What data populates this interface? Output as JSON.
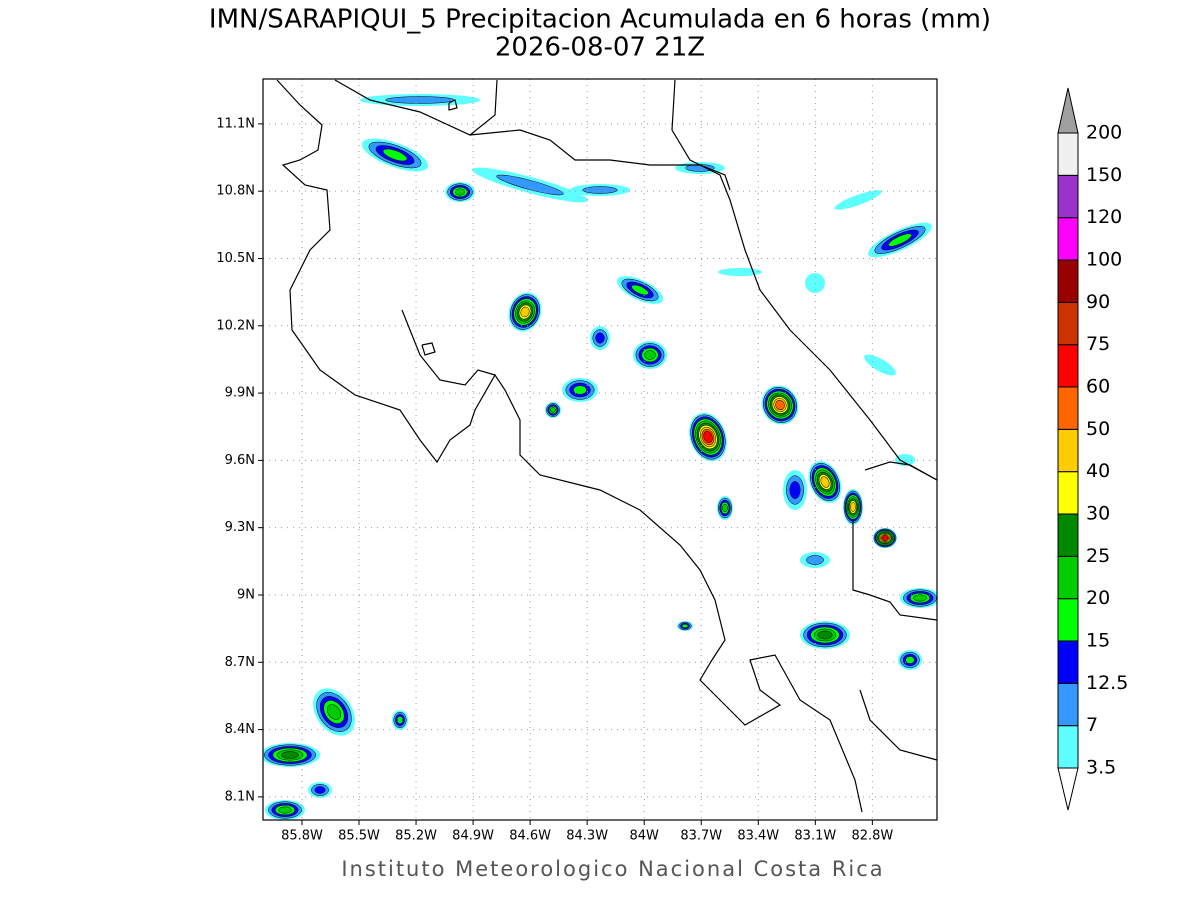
{
  "title": "IMN/SARAPIQUI_5 Precipitacion Acumulada en 6 horas (mm)",
  "subtitle": "2026-08-07 21Z",
  "map": {
    "xlim": [
      -86.005,
      -82.46
    ],
    "ylim": [
      7.997,
      11.3
    ],
    "xticks": [
      {
        "value": -85.8,
        "label": "85.8W"
      },
      {
        "value": -85.5,
        "label": "85.5W"
      },
      {
        "value": -85.2,
        "label": "85.2W"
      },
      {
        "value": -84.9,
        "label": "84.9W"
      },
      {
        "value": -84.6,
        "label": "84.6W"
      },
      {
        "value": -84.3,
        "label": "84.3W"
      },
      {
        "value": -84.0,
        "label": "84W"
      },
      {
        "value": -83.7,
        "label": "83.7W"
      },
      {
        "value": -83.4,
        "label": "83.4W"
      },
      {
        "value": -83.1,
        "label": "83.1W"
      },
      {
        "value": -82.8,
        "label": "82.8W"
      }
    ],
    "yticks": [
      {
        "value": 11.1,
        "label": "11.1N"
      },
      {
        "value": 10.8,
        "label": "10.8N"
      },
      {
        "value": 10.5,
        "label": "10.5N"
      },
      {
        "value": 10.2,
        "label": "10.2N"
      },
      {
        "value": 9.9,
        "label": "9.9N"
      },
      {
        "value": 9.6,
        "label": "9.6N"
      },
      {
        "value": 9.3,
        "label": "9.3N"
      },
      {
        "value": 9.0,
        "label": "9N"
      },
      {
        "value": 8.7,
        "label": "8.7N"
      },
      {
        "value": 8.4,
        "label": "8.4N"
      },
      {
        "value": 8.1,
        "label": "8.1N"
      }
    ],
    "grid": true
  },
  "colorbar": {
    "levels": [
      3.5,
      7,
      12.5,
      15,
      20,
      25,
      30,
      40,
      50,
      60,
      75,
      90,
      100,
      120,
      150,
      200
    ],
    "colors": [
      "#60ffff",
      "#3399ff",
      "#0000ff",
      "#00ff00",
      "#00cc00",
      "#008800",
      "#ffff00",
      "#ffcc00",
      "#ff6600",
      "#ff0000",
      "#cc3300",
      "#990000",
      "#ff00ff",
      "#9933cc",
      "#f0f0f0"
    ],
    "over_color": "#a0a0a0",
    "under_color": "#ffffff"
  },
  "credit": "Instituto Meteorologico Nacional Costa Rica"
}
